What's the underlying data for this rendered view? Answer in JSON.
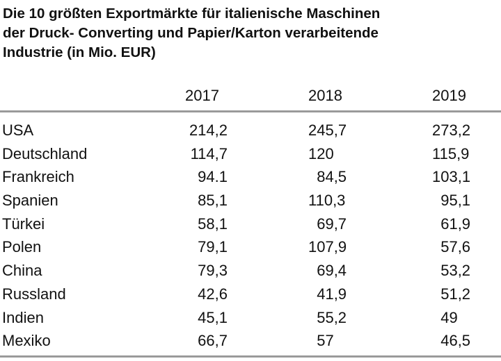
{
  "title": {
    "line1": "Die 10 größten Exportmärkte für italienische Maschinen",
    "line2": "der Druck- Converting und Papier/Karton verarbeitende",
    "line3": "Industrie (in Mio. EUR)"
  },
  "years": [
    "2017",
    "2018",
    "2019"
  ],
  "rows": [
    {
      "country": "USA",
      "v2017": "214,2",
      "v2018": "245,7",
      "v2019": "273,2"
    },
    {
      "country": "Deutschland",
      "v2017": "114,7",
      "v2018": "120",
      "v2019": "115,9"
    },
    {
      "country": "Frankreich",
      "v2017": "94.1",
      "v2018": "  84,5",
      "v2019": "103,1"
    },
    {
      "country": "Spanien",
      "v2017": "85,1",
      "v2018": "110,3",
      "v2019": "  95,1"
    },
    {
      "country": "Türkei",
      "v2017": "58,1",
      "v2018": "  69,7",
      "v2019": "  61,9"
    },
    {
      "country": "Polen",
      "v2017": "79,1",
      "v2018": "107,9",
      "v2019": "  57,6"
    },
    {
      "country": "China",
      "v2017": "79,3",
      "v2018": "  69,4",
      "v2019": "  53,2"
    },
    {
      "country": "Russland",
      "v2017": "42,6",
      "v2018": "  41,9",
      "v2019": "  51,2"
    },
    {
      "country": "Indien",
      "v2017": "45,1",
      "v2018": "  55,2",
      "v2019": "  49"
    },
    {
      "country": "Mexiko",
      "v2017": "66,7",
      "v2018": "  57",
      "v2019": "  46,5"
    }
  ]
}
